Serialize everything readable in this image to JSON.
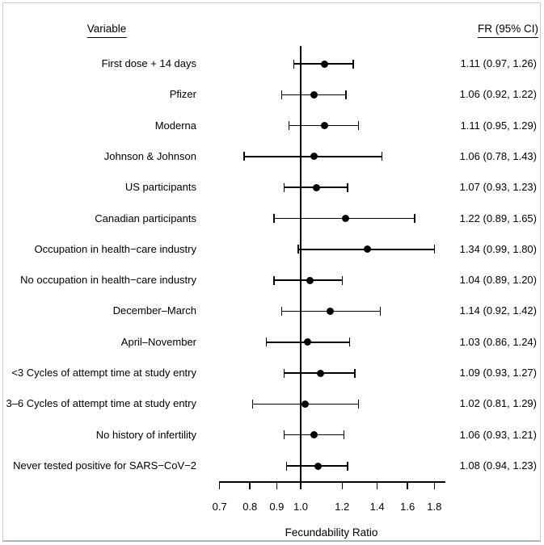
{
  "chart_data": {
    "type": "scatter",
    "variant": "forest-plot",
    "title": "",
    "xlabel": "Fecundability Ratio",
    "x_scale": "log10",
    "x_ticks": [
      "0.7",
      "0.8",
      "0.9",
      "1.0",
      "1.2",
      "1.4",
      "1.6",
      "1.8"
    ],
    "x_range": [
      0.7,
      1.85
    ],
    "reference_line_x": 1.0,
    "grid": false,
    "legend": false,
    "columns": {
      "variable": "Variable",
      "estimate": "FR (95% CI)"
    },
    "rows": [
      {
        "label": "First dose + 14 days",
        "fr": 1.11,
        "ci_low": 0.97,
        "ci_high": 1.26,
        "estimate_text": "1.11 (0.97, 1.26)"
      },
      {
        "label": "Pfizer",
        "fr": 1.06,
        "ci_low": 0.92,
        "ci_high": 1.22,
        "estimate_text": "1.06 (0.92, 1.22)"
      },
      {
        "label": "Moderna",
        "fr": 1.11,
        "ci_low": 0.95,
        "ci_high": 1.29,
        "estimate_text": "1.11 (0.95, 1.29)"
      },
      {
        "label": "Johnson & Johnson",
        "fr": 1.06,
        "ci_low": 0.78,
        "ci_high": 1.43,
        "estimate_text": "1.06 (0.78, 1.43)"
      },
      {
        "label": "US participants",
        "fr": 1.07,
        "ci_low": 0.93,
        "ci_high": 1.23,
        "estimate_text": "1.07 (0.93, 1.23)"
      },
      {
        "label": "Canadian participants",
        "fr": 1.22,
        "ci_low": 0.89,
        "ci_high": 1.65,
        "estimate_text": "1.22 (0.89, 1.65)"
      },
      {
        "label": "Occupation in health−care industry",
        "fr": 1.34,
        "ci_low": 0.99,
        "ci_high": 1.8,
        "estimate_text": "1.34 (0.99, 1.80)"
      },
      {
        "label": "No occupation in health−care industry",
        "fr": 1.04,
        "ci_low": 0.89,
        "ci_high": 1.2,
        "estimate_text": "1.04 (0.89, 1.20)"
      },
      {
        "label": "December–March",
        "fr": 1.14,
        "ci_low": 0.92,
        "ci_high": 1.42,
        "estimate_text": "1.14 (0.92, 1.42)"
      },
      {
        "label": "April–November",
        "fr": 1.03,
        "ci_low": 0.86,
        "ci_high": 1.24,
        "estimate_text": "1.03 (0.86, 1.24)"
      },
      {
        "label": "<3 Cycles of attempt time at study entry",
        "fr": 1.09,
        "ci_low": 0.93,
        "ci_high": 1.27,
        "estimate_text": "1.09 (0.93, 1.27)"
      },
      {
        "label": "3–6 Cycles of attempt time at study entry",
        "fr": 1.02,
        "ci_low": 0.81,
        "ci_high": 1.29,
        "estimate_text": "1.02 (0.81, 1.29)"
      },
      {
        "label": "No history of infertility",
        "fr": 1.06,
        "ci_low": 0.93,
        "ci_high": 1.21,
        "estimate_text": "1.06 (0.93, 1.21)"
      },
      {
        "label": "Never tested positive for SARS−CoV−2",
        "fr": 1.08,
        "ci_low": 0.94,
        "ci_high": 1.23,
        "estimate_text": "1.08 (0.94, 1.23)"
      }
    ],
    "colors": {
      "marker": "#000000",
      "ci_line": "#000000",
      "text": "#000000",
      "frame_border": "#c9cccc"
    }
  }
}
